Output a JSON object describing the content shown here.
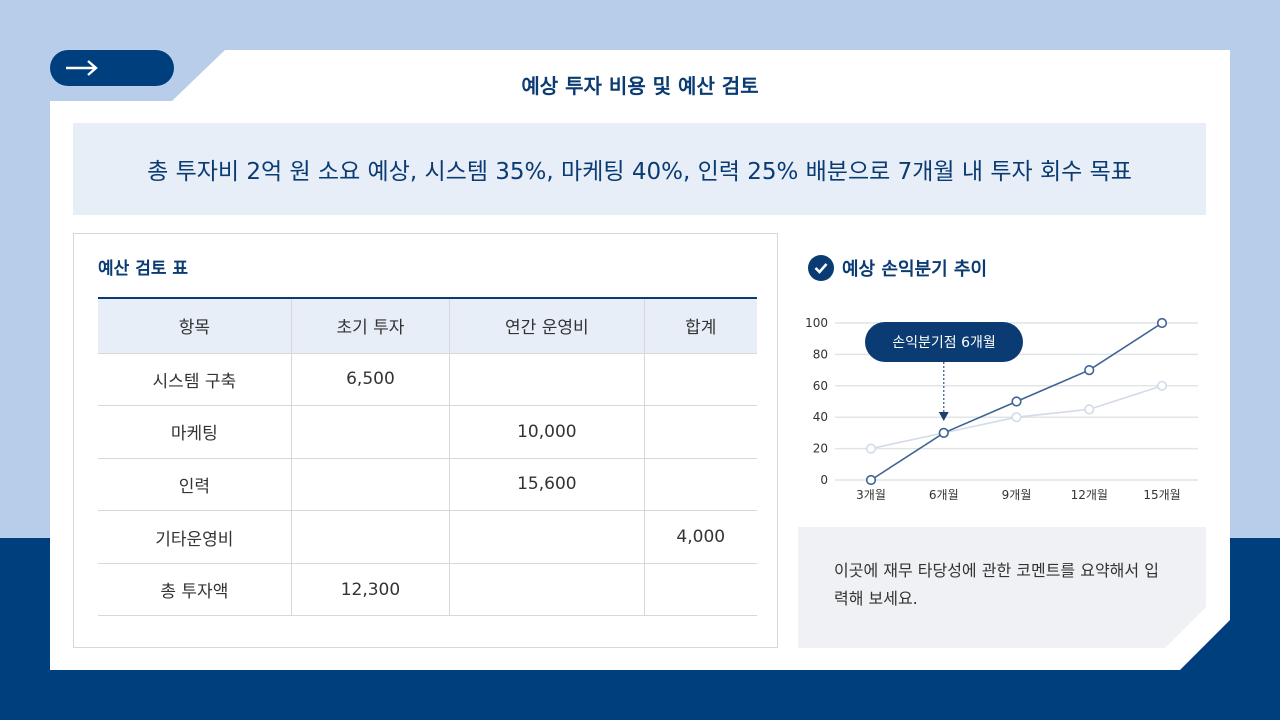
{
  "header": {
    "title": "예상 투자 비용 및 예산 검토",
    "nav_icon": "arrow-right-icon"
  },
  "summary": "총 투자비 2억 원 소요 예상, 시스템 35%, 마케팅 40%, 인력 25% 배분으로 7개월 내 투자 회수 목표",
  "table": {
    "title": "예산 검토 표",
    "columns": [
      "항목",
      "초기 투자",
      "연간 운영비",
      "합계"
    ],
    "rows": [
      [
        "시스템 구축",
        "6,500",
        "",
        ""
      ],
      [
        "마케팅",
        "",
        "10,000",
        ""
      ],
      [
        "인력",
        "",
        "15,600",
        ""
      ],
      [
        "기타운영비",
        "",
        "",
        "4,000"
      ],
      [
        "총 투자액",
        "12,300",
        "",
        ""
      ]
    ]
  },
  "chart": {
    "title": "예상 손익분기 추이",
    "title_icon": "check-circle-icon",
    "annotation": "손익분기점 6개월"
  },
  "chart_data": {
    "type": "line",
    "categories": [
      "3개월",
      "6개월",
      "9개월",
      "12개월",
      "15개월"
    ],
    "series": [
      {
        "values": [
          0,
          30,
          50,
          70,
          100
        ],
        "color": "#3d6494"
      },
      {
        "values": [
          20,
          30,
          40,
          45,
          60
        ],
        "color": "#d3dbe8"
      }
    ],
    "yticks": [
      0,
      20,
      40,
      60,
      80,
      100
    ],
    "ylim": [
      0,
      100
    ],
    "grid": true,
    "annotation_at": "6개월"
  },
  "comment": "이곳에 재무 타당성에 관한 코멘트를 요약해서 입력해 보세요.",
  "colors": {
    "primary": "#0a3b72",
    "dark_band": "#003f7d",
    "background": "#b7cde9",
    "light": "#e7eef8"
  }
}
